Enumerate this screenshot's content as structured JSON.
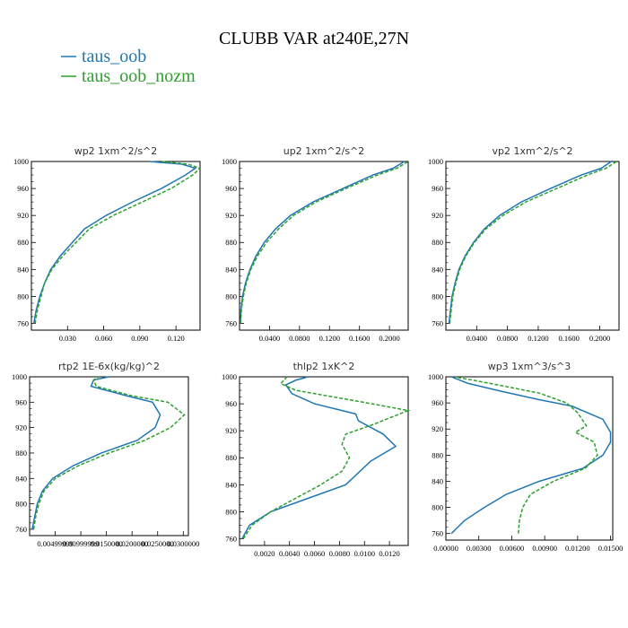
{
  "title": "CLUBB VAR at240E,27N",
  "legend": [
    {
      "label": "taus_oob",
      "color": "#1f77b4",
      "dash": "solid"
    },
    {
      "label": "taus_oob_nozm",
      "color": "#2ca02c",
      "dash": "dashed"
    }
  ],
  "chart_data": [
    {
      "type": "line",
      "title": "wp2   1xm^2/s^2",
      "xlim": [
        0,
        0.14
      ],
      "ylim": [
        1000,
        750
      ],
      "xticks": [
        "0.030",
        "0.060",
        "0.090",
        "0.120"
      ],
      "xtick_values": [
        0.03,
        0.06,
        0.09,
        0.12
      ],
      "yticks": [
        "760",
        "800",
        "840",
        "880",
        "920",
        "960",
        "1000"
      ],
      "series": [
        {
          "name": "taus_oob",
          "x": [
            0.002,
            0.004,
            0.007,
            0.011,
            0.016,
            0.024,
            0.034,
            0.044,
            0.062,
            0.084,
            0.108,
            0.128,
            0.136,
            0.125,
            0.098
          ],
          "y": [
            760,
            780,
            800,
            820,
            840,
            860,
            880,
            900,
            920,
            940,
            960,
            980,
            990,
            996,
            1000
          ]
        },
        {
          "name": "taus_oob_nozm",
          "x": [
            0.003,
            0.005,
            0.008,
            0.011,
            0.017,
            0.026,
            0.037,
            0.048,
            0.068,
            0.092,
            0.116,
            0.134,
            0.14,
            0.13,
            0.108
          ],
          "y": [
            760,
            780,
            800,
            820,
            840,
            860,
            880,
            900,
            920,
            940,
            960,
            980,
            990,
            996,
            1000
          ]
        }
      ]
    },
    {
      "type": "line",
      "title": "up2   1xm^2/s^2",
      "xlim": [
        0,
        0.225
      ],
      "ylim": [
        1000,
        750
      ],
      "xticks": [
        "0.0400",
        "0.0800",
        "0.1200",
        "0.1600",
        "0.2000"
      ],
      "xtick_values": [
        0.04,
        0.08,
        0.12,
        0.16,
        0.2
      ],
      "yticks": [
        "760",
        "800",
        "840",
        "880",
        "920",
        "960",
        "1000"
      ],
      "series": [
        {
          "name": "taus_oob",
          "x": [
            0.001,
            0.002,
            0.004,
            0.008,
            0.014,
            0.022,
            0.033,
            0.048,
            0.068,
            0.098,
            0.138,
            0.178,
            0.205,
            0.22
          ],
          "y": [
            760,
            780,
            800,
            820,
            840,
            860,
            880,
            900,
            920,
            940,
            960,
            980,
            990,
            1000
          ]
        },
        {
          "name": "taus_oob_nozm",
          "x": [
            0.0015,
            0.0025,
            0.005,
            0.009,
            0.015,
            0.024,
            0.036,
            0.052,
            0.072,
            0.102,
            0.142,
            0.184,
            0.21,
            0.225
          ],
          "y": [
            760,
            780,
            800,
            820,
            840,
            860,
            880,
            900,
            920,
            940,
            960,
            980,
            990,
            1000
          ]
        }
      ]
    },
    {
      "type": "line",
      "title": "vp2   1xm^2/s^2",
      "xlim": [
        0,
        0.225
      ],
      "ylim": [
        1000,
        750
      ],
      "xticks": [
        "0.0400",
        "0.0800",
        "0.1200",
        "0.1600",
        "0.2000"
      ],
      "xtick_values": [
        0.04,
        0.08,
        0.12,
        0.16,
        0.2
      ],
      "yticks": [
        "760",
        "800",
        "840",
        "880",
        "920",
        "960",
        "1000"
      ],
      "series": [
        {
          "name": "taus_oob",
          "x": [
            0.004,
            0.006,
            0.008,
            0.012,
            0.017,
            0.025,
            0.036,
            0.05,
            0.07,
            0.098,
            0.136,
            0.176,
            0.202,
            0.215
          ],
          "y": [
            760,
            780,
            800,
            820,
            840,
            860,
            880,
            900,
            920,
            940,
            960,
            980,
            990,
            1000
          ]
        },
        {
          "name": "taus_oob_nozm",
          "x": [
            0.005,
            0.007,
            0.009,
            0.013,
            0.018,
            0.026,
            0.037,
            0.052,
            0.074,
            0.104,
            0.144,
            0.184,
            0.208,
            0.222
          ],
          "y": [
            760,
            780,
            800,
            820,
            840,
            860,
            880,
            900,
            920,
            940,
            960,
            980,
            990,
            1000
          ]
        }
      ]
    },
    {
      "type": "line",
      "title": "rtp2   1E-6x(kg/kg)^2",
      "xlim": [
        0,
        0.031
      ],
      "ylim": [
        1000,
        750
      ],
      "xticks": [
        "0.00499999",
        "0.00999999",
        "0.0150000",
        "0.0200000",
        "0.0250000",
        "0.0300000"
      ],
      "xtick_values": [
        0.005,
        0.01,
        0.015,
        0.02,
        0.025,
        0.03
      ],
      "yticks": [
        "760",
        "800",
        "840",
        "880",
        "920",
        "960",
        "1000"
      ],
      "series": [
        {
          "name": "taus_oob",
          "x": [
            0.0005,
            0.001,
            0.0015,
            0.0025,
            0.0045,
            0.0085,
            0.014,
            0.021,
            0.0245,
            0.0255,
            0.024,
            0.019,
            0.012,
            0.0125,
            0.0155
          ],
          "y": [
            760,
            780,
            800,
            820,
            840,
            860,
            880,
            900,
            920,
            940,
            960,
            970,
            985,
            995,
            1000
          ]
        },
        {
          "name": "taus_oob_nozm",
          "x": [
            0.0008,
            0.0012,
            0.0018,
            0.0028,
            0.005,
            0.0095,
            0.0155,
            0.0225,
            0.0275,
            0.0302,
            0.027,
            0.02,
            0.013,
            0.0125,
            0.0135
          ],
          "y": [
            760,
            780,
            800,
            820,
            840,
            860,
            880,
            900,
            920,
            940,
            960,
            970,
            985,
            995,
            1000
          ]
        }
      ]
    },
    {
      "type": "line",
      "title": "thlp2   1xK^2",
      "xlim": [
        0,
        0.0135
      ],
      "ylim": [
        1000,
        750
      ],
      "xticks": [
        "0.0020",
        "0.0040",
        "0.0060",
        "0.0080",
        "0.0100",
        "0.0120"
      ],
      "xtick_values": [
        0.002,
        0.004,
        0.006,
        0.008,
        0.01,
        0.012
      ],
      "yticks": [
        "760",
        "800",
        "840",
        "880",
        "920",
        "960",
        "1000"
      ],
      "series": [
        {
          "name": "taus_oob",
          "x": [
            0.0002,
            0.0008,
            0.0025,
            0.0055,
            0.0085,
            0.0105,
            0.0125,
            0.0115,
            0.0095,
            0.0093,
            0.006,
            0.0042,
            0.0037,
            0.0045,
            0.0055
          ],
          "y": [
            760,
            780,
            800,
            820,
            840,
            875,
            897,
            915,
            935,
            945,
            960,
            975,
            988,
            995,
            1000
          ]
        },
        {
          "name": "taus_oob_nozm",
          "x": [
            0.0003,
            0.001,
            0.0025,
            0.0045,
            0.0065,
            0.0082,
            0.0088,
            0.0082,
            0.0085,
            0.0108,
            0.0135,
            0.01,
            0.0045,
            0.0033,
            0.0038
          ],
          "y": [
            760,
            780,
            800,
            820,
            840,
            860,
            880,
            900,
            915,
            930,
            950,
            962,
            980,
            990,
            1000
          ]
        }
      ]
    },
    {
      "type": "line",
      "title": "wp3   1xm^3/s^3",
      "xlim": [
        0,
        0.0152
      ],
      "ylim": [
        1000,
        750
      ],
      "xticks": [
        "0.00000",
        "0.00300",
        "0.00600",
        "0.00900",
        "0.01200",
        "0.01500"
      ],
      "xtick_values": [
        0,
        0.003,
        0.006,
        0.009,
        0.012,
        0.015
      ],
      "yticks": [
        "760",
        "800",
        "840",
        "880",
        "920",
        "960",
        "1000"
      ],
      "series": [
        {
          "name": "taus_oob",
          "x": [
            0.0005,
            0.0017,
            0.0035,
            0.0055,
            0.0085,
            0.0125,
            0.0143,
            0.015,
            0.015,
            0.0143,
            0.0115,
            0.0085,
            0.005,
            0.002,
            0.0005
          ],
          "y": [
            760,
            780,
            800,
            820,
            840,
            860,
            880,
            900,
            915,
            935,
            955,
            965,
            978,
            990,
            1000
          ]
        },
        {
          "name": "taus_oob_nozm",
          "x": [
            0.0066,
            0.0067,
            0.007,
            0.0077,
            0.0098,
            0.0127,
            0.0138,
            0.0135,
            0.0118,
            0.0128,
            0.012,
            0.011,
            0.0085,
            0.004,
            0.0008
          ],
          "y": [
            760,
            780,
            800,
            820,
            840,
            860,
            880,
            900,
            915,
            925,
            945,
            960,
            975,
            990,
            1000
          ]
        }
      ]
    }
  ]
}
